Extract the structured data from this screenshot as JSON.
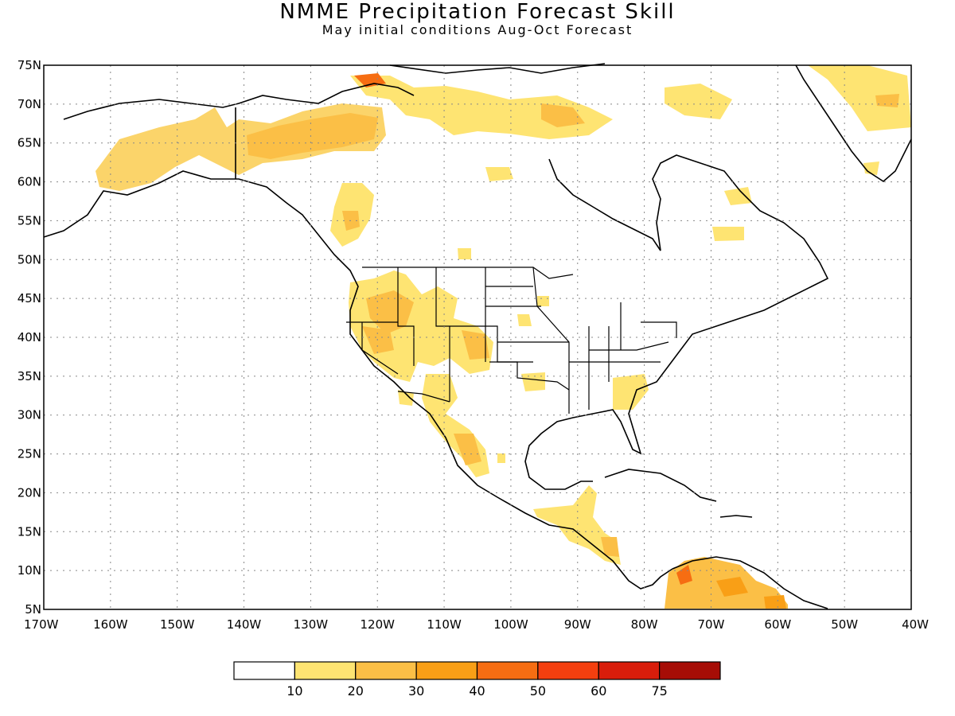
{
  "title": "NMME Precipitation Forecast Skill",
  "subtitle": "May initial conditions  Aug-Oct Forecast",
  "lat_ticks": [
    "75N",
    "70N",
    "65N",
    "60N",
    "55N",
    "50N",
    "45N",
    "40N",
    "35N",
    "30N",
    "25N",
    "20N",
    "15N",
    "10N",
    "5N"
  ],
  "lon_ticks": [
    "170W",
    "160W",
    "150W",
    "140W",
    "130W",
    "120W",
    "110W",
    "100W",
    "90W",
    "80W",
    "70W",
    "60W",
    "50W",
    "40W"
  ],
  "colorbar": {
    "colors": [
      "#ffffff",
      "#fee472",
      "#fbbf46",
      "#f99f16",
      "#f66d12",
      "#f43f0f",
      "#d91d0b",
      "#a60d06"
    ],
    "labels": [
      "10",
      "20",
      "30",
      "40",
      "50",
      "60",
      "75"
    ]
  },
  "map_extent": {
    "lon_min": -170,
    "lon_max": -40,
    "lat_min": 5,
    "lat_max": 75
  }
}
